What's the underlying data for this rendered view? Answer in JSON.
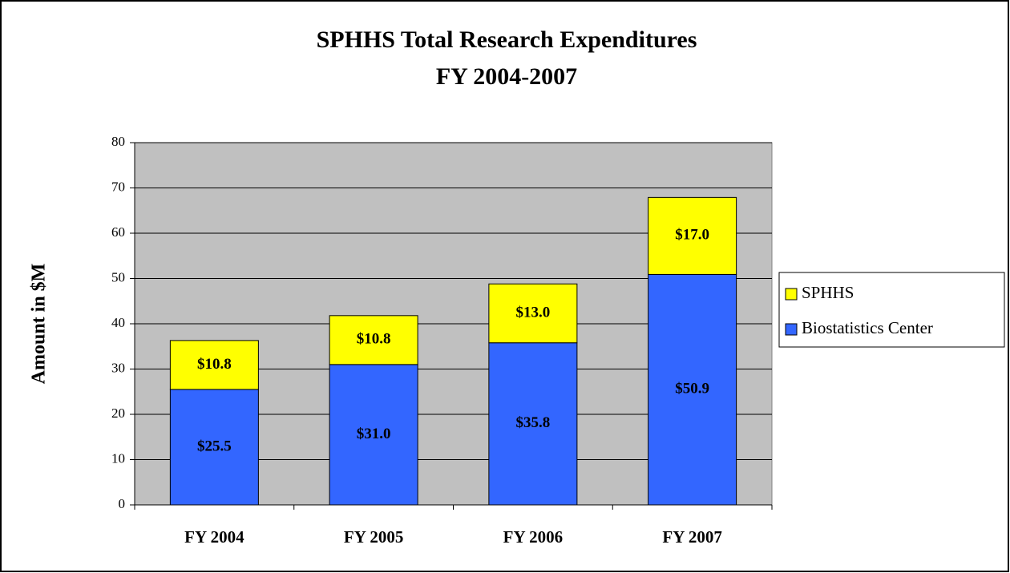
{
  "chart_data": {
    "type": "stacked_bar",
    "title": "SPHHS Total Research Expenditures",
    "subtitle": "FY 2004-2007",
    "y_label": "Amount in $M",
    "categories": [
      "FY 2004",
      "FY 2005",
      "FY 2006",
      "FY 2007"
    ],
    "series": [
      {
        "name": "Biostatistics Center",
        "color": "#3366ff",
        "values": [
          25.5,
          31.0,
          35.8,
          50.9
        ],
        "value_labels": [
          "$25.5",
          "$31.0",
          "$35.8",
          "$50.9"
        ]
      },
      {
        "name": "SPHHS",
        "color": "#ffff00",
        "values": [
          10.8,
          10.8,
          13.0,
          17.0
        ],
        "value_labels": [
          "$10.8",
          "$10.8",
          "$13.0",
          "$17.0"
        ]
      }
    ],
    "ylim": [
      0,
      80
    ],
    "yticks": [
      0,
      10,
      20,
      30,
      40,
      50,
      60,
      70,
      80
    ],
    "grid": true,
    "legend": "right",
    "plot_background": "#c0c0c0"
  }
}
